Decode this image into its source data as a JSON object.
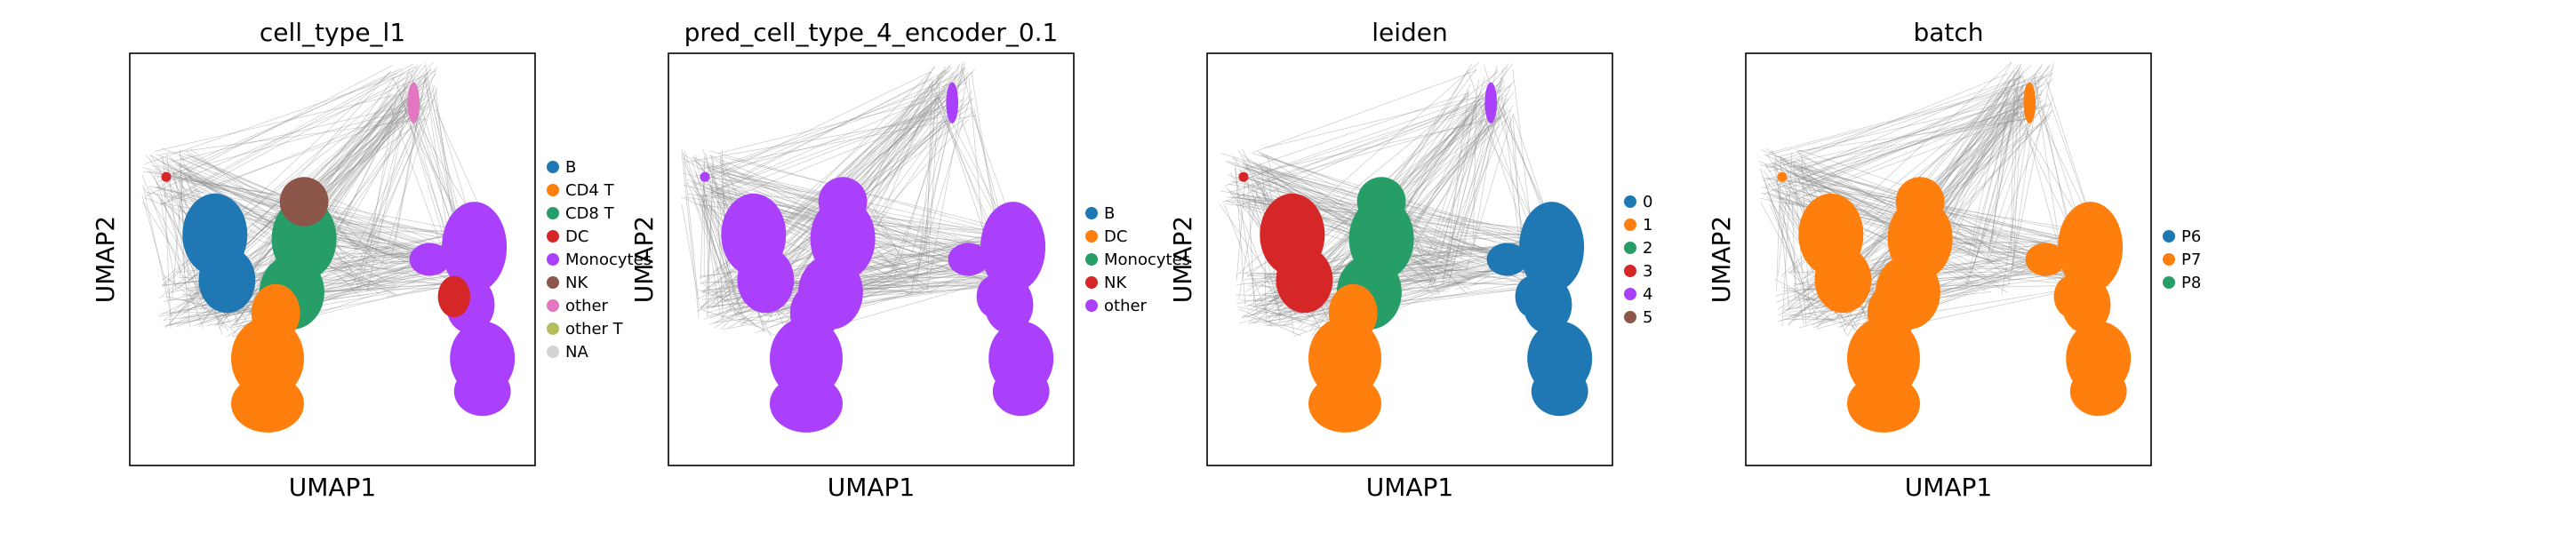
{
  "chart_data": [
    {
      "type": "scatter",
      "title": "cell_type_l1",
      "xlabel": "UMAP1",
      "ylabel": "UMAP2",
      "grid": false,
      "legend_placement": "right",
      "legend": [
        {
          "label": "B",
          "color": "#1f77b4"
        },
        {
          "label": "CD4 T",
          "color": "#ff7f0e"
        },
        {
          "label": "CD8 T",
          "color": "#279e68"
        },
        {
          "label": "DC",
          "color": "#d62728"
        },
        {
          "label": "Monocytes",
          "color": "#aa40fc"
        },
        {
          "label": "NK",
          "color": "#8c564b"
        },
        {
          "label": "other",
          "color": "#e377c2"
        },
        {
          "label": "other T",
          "color": "#b5bd61"
        },
        {
          "label": "NA",
          "color": "#d3d3d3"
        }
      ],
      "clusters": [
        {
          "cluster": "left-lobe",
          "color": "#1f77b4"
        },
        {
          "cluster": "center-upper",
          "color": "#279e68"
        },
        {
          "cluster": "center-top",
          "color": "#8c564b"
        },
        {
          "cluster": "left-lower",
          "color": "#ff7f0e"
        },
        {
          "cluster": "right-mass",
          "color": "#aa40fc"
        },
        {
          "cluster": "right-neck",
          "color": "#d62728"
        },
        {
          "cluster": "top-peak",
          "color": "#e377c2"
        },
        {
          "cluster": "left-tip",
          "color": "#d62728"
        }
      ]
    },
    {
      "type": "scatter",
      "title": "pred_cell_type_4_encoder_0.1",
      "xlabel": "UMAP1",
      "ylabel": "UMAP2",
      "grid": false,
      "legend_placement": "right",
      "legend": [
        {
          "label": "B",
          "color": "#1f77b4"
        },
        {
          "label": "DC",
          "color": "#ff7f0e"
        },
        {
          "label": "Monocytes",
          "color": "#279e68"
        },
        {
          "label": "NK",
          "color": "#d62728"
        },
        {
          "label": "other",
          "color": "#aa40fc"
        }
      ],
      "clusters": [
        {
          "cluster": "left-lobe",
          "color": "#aa40fc"
        },
        {
          "cluster": "center-upper",
          "color": "#aa40fc"
        },
        {
          "cluster": "center-top",
          "color": "#aa40fc"
        },
        {
          "cluster": "left-lower",
          "color": "#aa40fc"
        },
        {
          "cluster": "right-mass",
          "color": "#aa40fc"
        },
        {
          "cluster": "right-neck",
          "color": "#aa40fc"
        },
        {
          "cluster": "top-peak",
          "color": "#aa40fc"
        },
        {
          "cluster": "left-tip",
          "color": "#aa40fc"
        }
      ]
    },
    {
      "type": "scatter",
      "title": "leiden",
      "xlabel": "UMAP1",
      "ylabel": "UMAP2",
      "grid": false,
      "legend_placement": "right",
      "legend": [
        {
          "label": "0",
          "color": "#1f77b4"
        },
        {
          "label": "1",
          "color": "#ff7f0e"
        },
        {
          "label": "2",
          "color": "#279e68"
        },
        {
          "label": "3",
          "color": "#d62728"
        },
        {
          "label": "4",
          "color": "#aa40fc"
        },
        {
          "label": "5",
          "color": "#8c564b"
        }
      ],
      "clusters": [
        {
          "cluster": "left-lobe",
          "color": "#d62728"
        },
        {
          "cluster": "center-upper",
          "color": "#279e68"
        },
        {
          "cluster": "center-top",
          "color": "#279e68"
        },
        {
          "cluster": "left-lower",
          "color": "#ff7f0e"
        },
        {
          "cluster": "right-mass",
          "color": "#1f77b4"
        },
        {
          "cluster": "right-neck",
          "color": "#1f77b4"
        },
        {
          "cluster": "top-peak",
          "color": "#aa40fc"
        },
        {
          "cluster": "left-tip",
          "color": "#d62728"
        }
      ]
    },
    {
      "type": "scatter",
      "title": "batch",
      "xlabel": "UMAP1",
      "ylabel": "UMAP2",
      "grid": false,
      "legend_placement": "right",
      "legend": [
        {
          "label": "P6",
          "color": "#1f77b4"
        },
        {
          "label": "P7",
          "color": "#ff7f0e"
        },
        {
          "label": "P8",
          "color": "#279e68"
        }
      ],
      "clusters": [
        {
          "cluster": "left-lobe",
          "color": "#ff7f0e"
        },
        {
          "cluster": "center-upper",
          "color": "#ff7f0e"
        },
        {
          "cluster": "center-top",
          "color": "#ff7f0e"
        },
        {
          "cluster": "left-lower",
          "color": "#ff7f0e"
        },
        {
          "cluster": "right-mass",
          "color": "#ff7f0e"
        },
        {
          "cluster": "right-neck",
          "color": "#ff7f0e"
        },
        {
          "cluster": "top-peak",
          "color": "#ff7f0e"
        },
        {
          "cluster": "left-tip",
          "color": "#ff7f0e"
        }
      ]
    }
  ]
}
